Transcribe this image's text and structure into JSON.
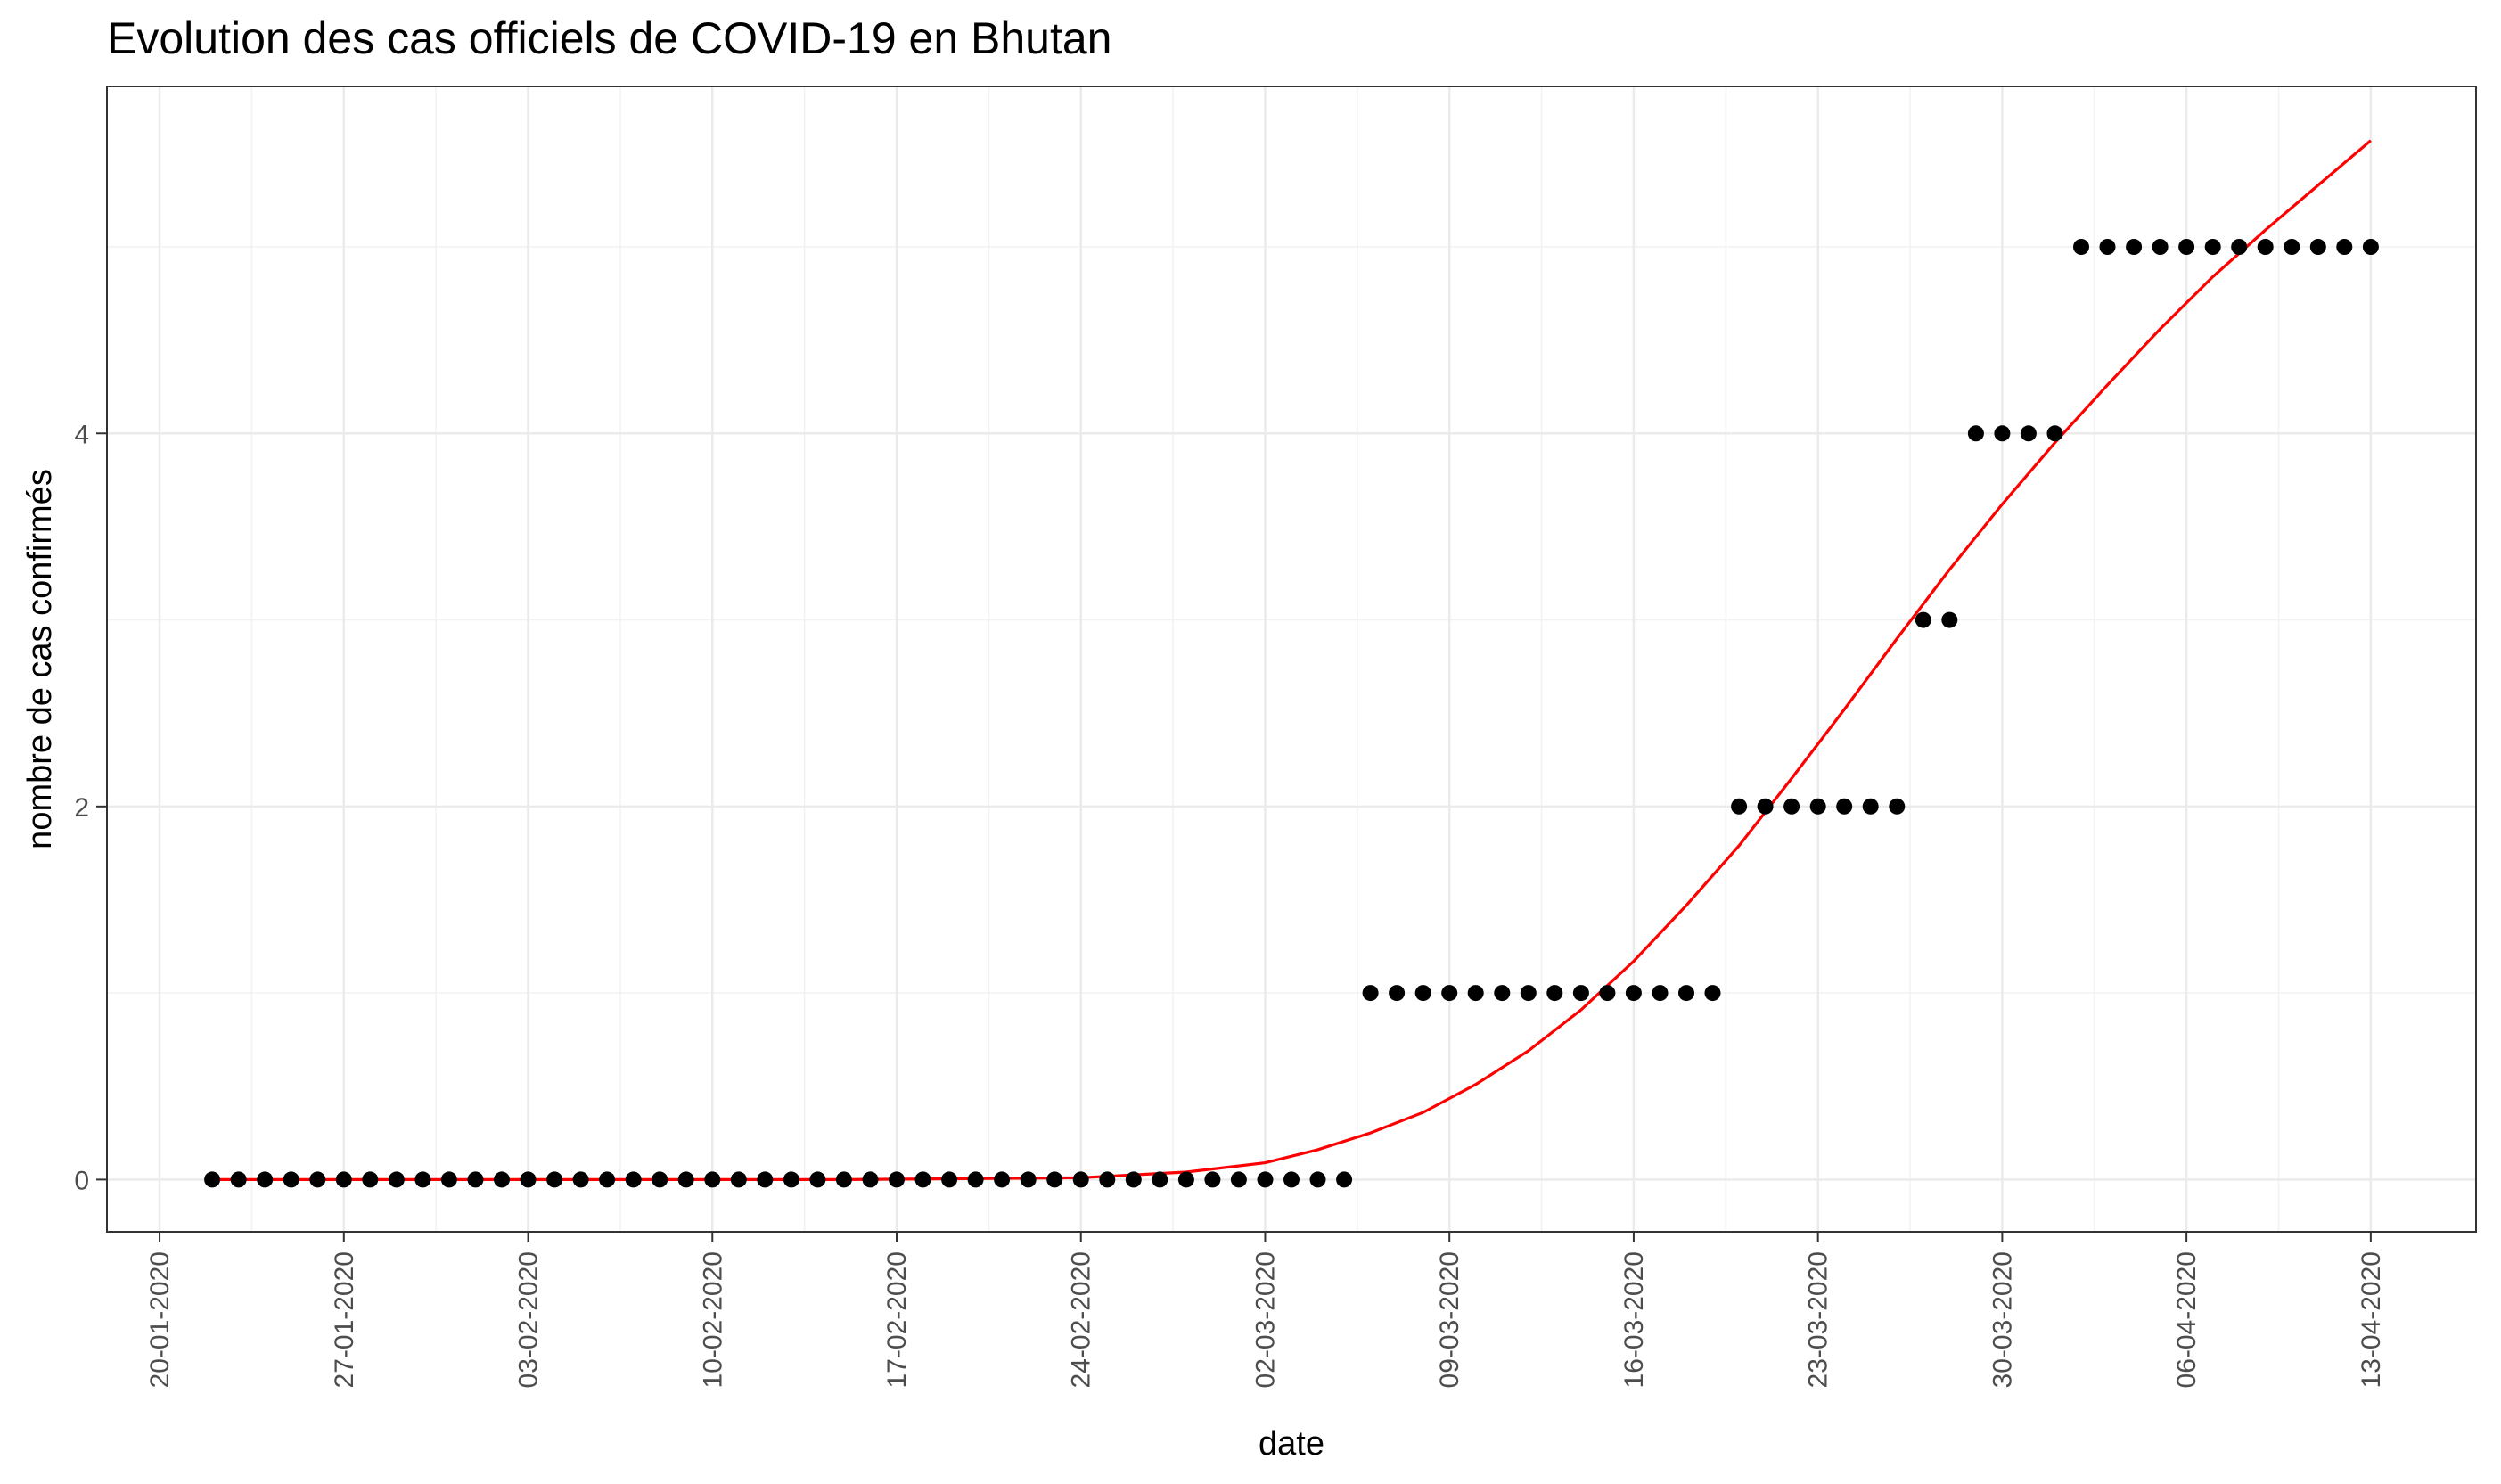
{
  "chart_data": {
    "type": "scatter",
    "title": "Evolution des cas officiels de COVID-19 en Bhutan",
    "xlabel": "date",
    "ylabel": "nombre de cas confirmés",
    "x_tick_labels": [
      "20-01-2020",
      "27-01-2020",
      "03-02-2020",
      "10-02-2020",
      "17-02-2020",
      "24-02-2020",
      "02-03-2020",
      "09-03-2020",
      "16-03-2020",
      "23-03-2020",
      "30-03-2020",
      "06-04-2020",
      "13-04-2020"
    ],
    "x_ticks": [
      "2020-01-20",
      "2020-01-27",
      "2020-02-03",
      "2020-02-10",
      "2020-02-17",
      "2020-02-24",
      "2020-03-02",
      "2020-03-09",
      "2020-03-16",
      "2020-03-23",
      "2020-03-30",
      "2020-04-06",
      "2020-04-13"
    ],
    "y_tick_labels": [
      "0",
      "2",
      "4"
    ],
    "y_ticks": [
      0,
      2,
      4
    ],
    "xlim": [
      "2020-01-18",
      "2020-04-17"
    ],
    "ylim": [
      -0.28,
      5.86
    ],
    "grid": true,
    "series": [
      {
        "kind": "points",
        "color": "#000000",
        "x": [
          "2020-01-22",
          "2020-01-23",
          "2020-01-24",
          "2020-01-25",
          "2020-01-26",
          "2020-01-27",
          "2020-01-28",
          "2020-01-29",
          "2020-01-30",
          "2020-01-31",
          "2020-02-01",
          "2020-02-02",
          "2020-02-03",
          "2020-02-04",
          "2020-02-05",
          "2020-02-06",
          "2020-02-07",
          "2020-02-08",
          "2020-02-09",
          "2020-02-10",
          "2020-02-11",
          "2020-02-12",
          "2020-02-13",
          "2020-02-14",
          "2020-02-15",
          "2020-02-16",
          "2020-02-17",
          "2020-02-18",
          "2020-02-19",
          "2020-02-20",
          "2020-02-21",
          "2020-02-22",
          "2020-02-23",
          "2020-02-24",
          "2020-02-25",
          "2020-02-26",
          "2020-02-27",
          "2020-02-28",
          "2020-02-29",
          "2020-03-01",
          "2020-03-02",
          "2020-03-03",
          "2020-03-04",
          "2020-03-05",
          "2020-03-06",
          "2020-03-07",
          "2020-03-08",
          "2020-03-09",
          "2020-03-10",
          "2020-03-11",
          "2020-03-12",
          "2020-03-13",
          "2020-03-14",
          "2020-03-15",
          "2020-03-16",
          "2020-03-17",
          "2020-03-18",
          "2020-03-19",
          "2020-03-20",
          "2020-03-21",
          "2020-03-22",
          "2020-03-23",
          "2020-03-24",
          "2020-03-25",
          "2020-03-26",
          "2020-03-27",
          "2020-03-28",
          "2020-03-29",
          "2020-03-30",
          "2020-03-31",
          "2020-04-01",
          "2020-04-02",
          "2020-04-03",
          "2020-04-04",
          "2020-04-05",
          "2020-04-06",
          "2020-04-07",
          "2020-04-08",
          "2020-04-09",
          "2020-04-10",
          "2020-04-11",
          "2020-04-12",
          "2020-04-13"
        ],
        "y": [
          0,
          0,
          0,
          0,
          0,
          0,
          0,
          0,
          0,
          0,
          0,
          0,
          0,
          0,
          0,
          0,
          0,
          0,
          0,
          0,
          0,
          0,
          0,
          0,
          0,
          0,
          0,
          0,
          0,
          0,
          0,
          0,
          0,
          0,
          0,
          0,
          0,
          0,
          0,
          0,
          0,
          0,
          0,
          0,
          1,
          1,
          1,
          1,
          1,
          1,
          1,
          1,
          1,
          1,
          1,
          1,
          1,
          1,
          2,
          2,
          2,
          2,
          2,
          2,
          2,
          3,
          3,
          4,
          4,
          4,
          4,
          5,
          5,
          5,
          5,
          5,
          5,
          5,
          5,
          5,
          5,
          5,
          5
        ]
      },
      {
        "kind": "fitted-curve",
        "color": "#ff0000",
        "x": [
          "2020-01-22",
          "2020-02-15",
          "2020-02-24",
          "2020-02-28",
          "2020-03-02",
          "2020-03-04",
          "2020-03-06",
          "2020-03-08",
          "2020-03-10",
          "2020-03-12",
          "2020-03-14",
          "2020-03-16",
          "2020-03-18",
          "2020-03-20",
          "2020-03-22",
          "2020-03-24",
          "2020-03-26",
          "2020-03-28",
          "2020-03-30",
          "2020-04-01",
          "2020-04-03",
          "2020-04-05",
          "2020-04-07",
          "2020-04-09",
          "2020-04-11",
          "2020-04-13"
        ],
        "y": [
          0,
          0,
          0.01,
          0.04,
          0.09,
          0.16,
          0.25,
          0.36,
          0.51,
          0.69,
          0.91,
          1.17,
          1.47,
          1.79,
          2.15,
          2.52,
          2.9,
          3.27,
          3.62,
          3.95,
          4.26,
          4.56,
          4.84,
          5.09,
          5.33,
          5.57
        ]
      }
    ]
  }
}
